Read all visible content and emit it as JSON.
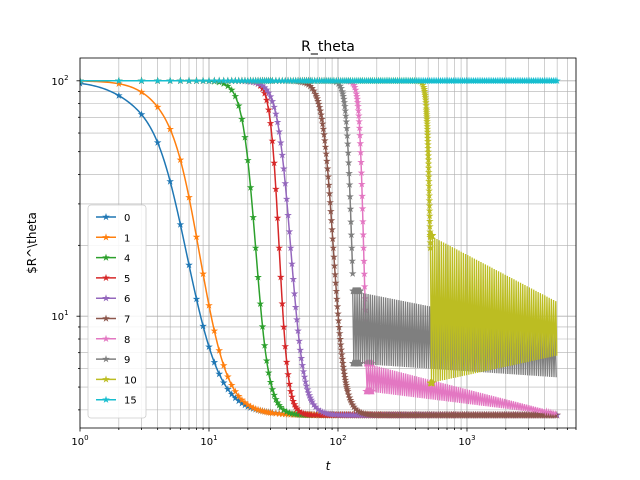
{
  "chart_data": {
    "type": "line",
    "title": "R_theta",
    "xlabel": "t",
    "ylabel": "$R^\\theta",
    "xscale": "log",
    "yscale": "log",
    "xlim": [
      1,
      7000
    ],
    "ylim": [
      3.35,
      125
    ],
    "x_ticks": [
      {
        "value": 1,
        "label": "10",
        "exp": "0"
      },
      {
        "value": 10,
        "label": "10",
        "exp": "1"
      },
      {
        "value": 100,
        "label": "10",
        "exp": "2"
      },
      {
        "value": 1000,
        "label": "10",
        "exp": "3"
      }
    ],
    "y_ticks": [
      {
        "value": 10,
        "label": "10",
        "exp": "1"
      },
      {
        "value": 100,
        "label": "10",
        "exp": "2"
      }
    ],
    "grid": true,
    "legend_position": "lower-left",
    "series": [
      {
        "name": "0",
        "color": "#1f77b4",
        "transition": {
          "t0": 5.5,
          "w": 0.35,
          "a": 0.44
        },
        "oscillation": null
      },
      {
        "name": "1",
        "color": "#ff7f0e",
        "transition": {
          "t0": 7.5,
          "w": 0.28,
          "a": 0.3
        },
        "oscillation": null
      },
      {
        "name": "4",
        "color": "#2ca02c",
        "transition": {
          "t0": 23,
          "w": 0.12,
          "a": 0
        },
        "oscillation": null
      },
      {
        "name": "5",
        "color": "#d62728",
        "transition": {
          "t0": 35,
          "w": 0.08,
          "a": 0
        },
        "oscillation": null
      },
      {
        "name": "6",
        "color": "#9467bd",
        "transition": {
          "t0": 43,
          "w": 0.12,
          "a": 0
        },
        "oscillation": null
      },
      {
        "name": "7",
        "color": "#8c564b",
        "transition": {
          "t0": 92,
          "w": 0.1,
          "a": 0
        },
        "oscillation": null
      },
      {
        "name": "8",
        "color": "#e377c2",
        "transition": {
          "t0": 158,
          "w": 0.04,
          "a": 0
        },
        "oscillation": {
          "start": 165,
          "lo_start": 4.8,
          "lo_end": 3.8,
          "hi_start": 6.3,
          "hi_end": 3.9
        }
      },
      {
        "name": "9",
        "color": "#7f7f7f",
        "transition": {
          "t0": 128,
          "w": 0.05,
          "a": 0
        },
        "oscillation": {
          "start": 130,
          "lo_start": 6.3,
          "lo_end": 5.5,
          "hi_start": 12.8,
          "hi_end": 8.6
        }
      },
      {
        "name": "10",
        "color": "#bcbd22",
        "transition": {
          "t0": 520,
          "w": 0.03,
          "a": 0
        },
        "oscillation": {
          "start": 520,
          "lo_start": 5.2,
          "lo_end": 6.8,
          "hi_start": 22.0,
          "hi_end": 11.5
        }
      },
      {
        "name": "15",
        "color": "#17becf",
        "transition": null,
        "oscillation": null
      }
    ],
    "series_extent": {
      "tmax": 5000,
      "y_high": 100,
      "y_low": 3.8
    }
  }
}
